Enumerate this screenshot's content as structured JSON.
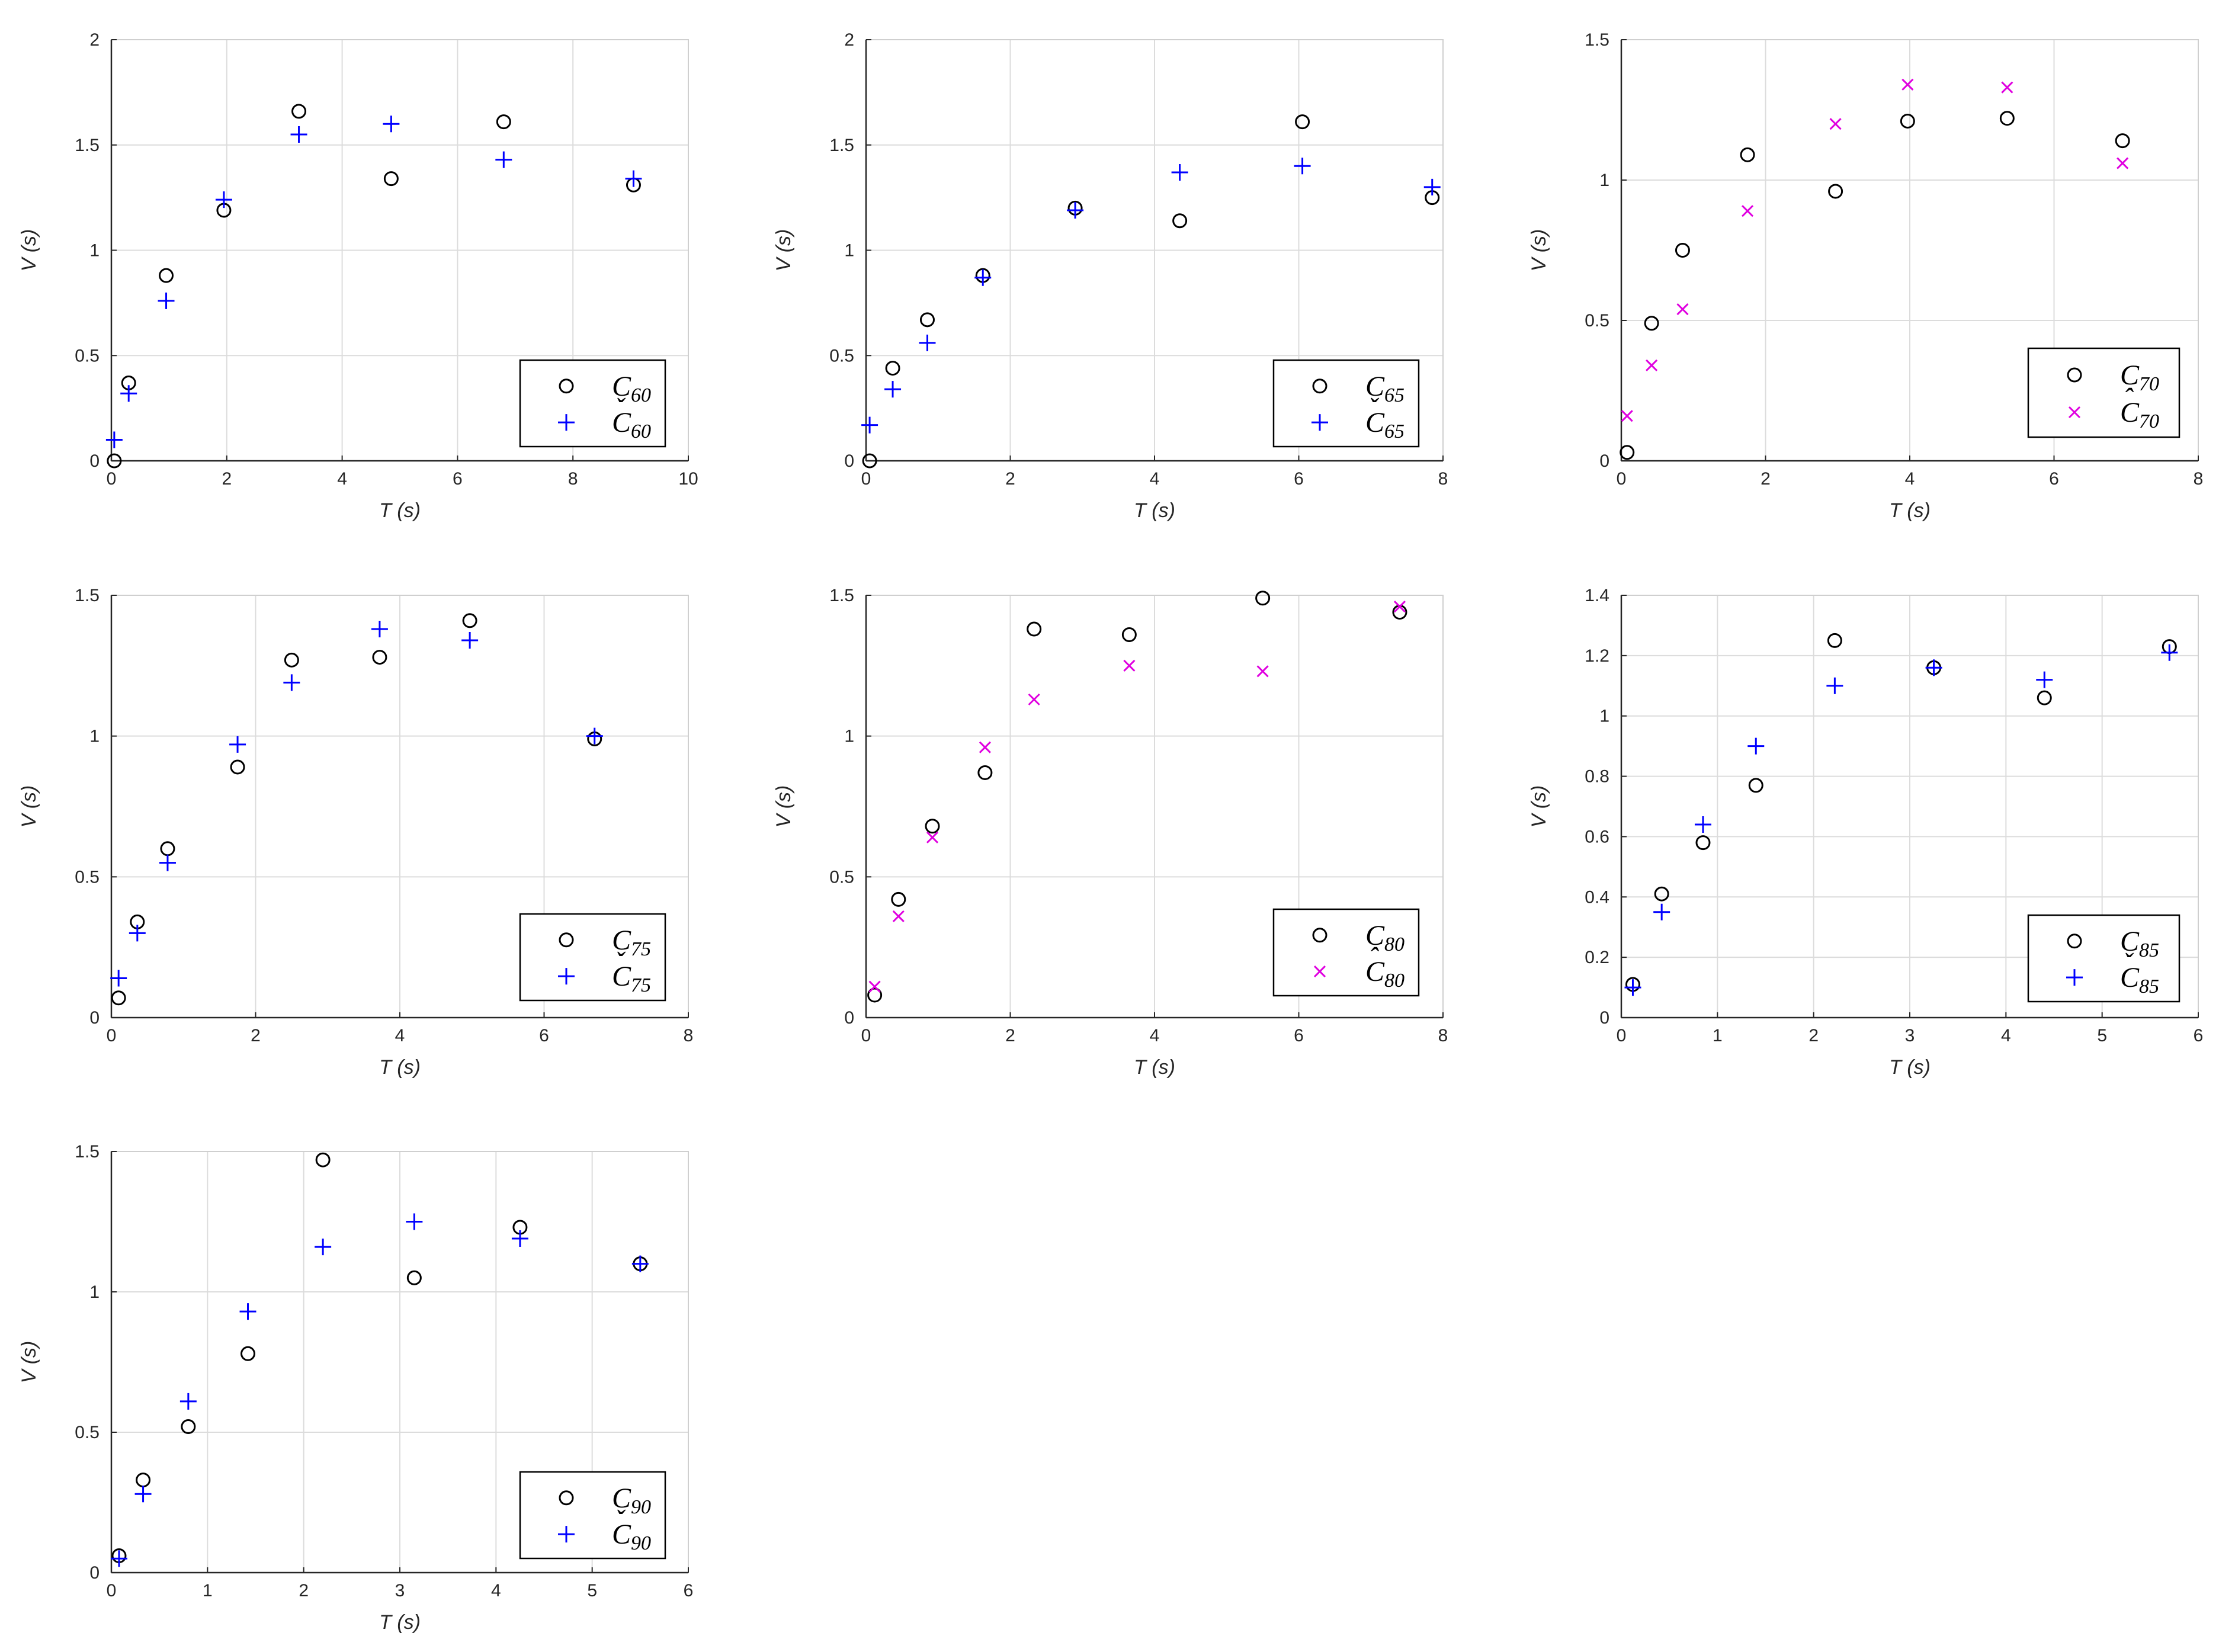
{
  "colors": {
    "circle": "#000000",
    "blue_plus": "#0000ff",
    "magenta_x": "#e000e0",
    "grid": "#dcdcdc",
    "axis": "#262626"
  },
  "chart_data": [
    {
      "type": "scatter",
      "xlabel": "T (s)",
      "ylabel": "V (s)",
      "xlim": [
        0,
        10
      ],
      "ylim": [
        0,
        2
      ],
      "xticks": [
        "0",
        "2",
        "4",
        "6",
        "8",
        "10"
      ],
      "yticks": [
        "0",
        "0.5",
        "1",
        "1.5",
        "2"
      ],
      "grid": true,
      "legend_position": "bottom-right",
      "series": [
        {
          "name": "C",
          "sub": "60",
          "accent": "",
          "marker": "circle",
          "color": "#000000",
          "points": [
            [
              0.05,
              0
            ],
            [
              0.3,
              0.37
            ],
            [
              0.95,
              0.88
            ],
            [
              1.95,
              1.19
            ],
            [
              3.25,
              1.66
            ],
            [
              4.85,
              1.34
            ],
            [
              6.8,
              1.61
            ],
            [
              9.05,
              1.31
            ]
          ]
        },
        {
          "name": "C",
          "sub": "60",
          "accent": "ˇ",
          "marker": "plus",
          "color": "#0000ff",
          "points": [
            [
              0.05,
              0.1
            ],
            [
              0.3,
              0.32
            ],
            [
              0.95,
              0.76
            ],
            [
              1.95,
              1.24
            ],
            [
              3.25,
              1.55
            ],
            [
              4.85,
              1.6
            ],
            [
              6.8,
              1.43
            ],
            [
              9.05,
              1.34
            ]
          ]
        }
      ]
    },
    {
      "type": "scatter",
      "xlabel": "T (s)",
      "ylabel": "V (s)",
      "xlim": [
        0,
        8
      ],
      "ylim": [
        0,
        2
      ],
      "xticks": [
        "0",
        "2",
        "4",
        "6",
        "8"
      ],
      "yticks": [
        "0",
        "0.5",
        "1",
        "1.5",
        "2"
      ],
      "grid": true,
      "legend_position": "bottom-right",
      "series": [
        {
          "name": "C",
          "sub": "65",
          "accent": "",
          "marker": "circle",
          "color": "#000000",
          "points": [
            [
              0.05,
              0
            ],
            [
              0.37,
              0.44
            ],
            [
              0.85,
              0.67
            ],
            [
              1.62,
              0.88
            ],
            [
              2.9,
              1.2
            ],
            [
              4.35,
              1.14
            ],
            [
              6.05,
              1.61
            ],
            [
              7.85,
              1.25
            ]
          ]
        },
        {
          "name": "C",
          "sub": "65",
          "accent": "ˇ",
          "marker": "plus",
          "color": "#0000ff",
          "points": [
            [
              0.05,
              0.17
            ],
            [
              0.37,
              0.34
            ],
            [
              0.85,
              0.56
            ],
            [
              1.62,
              0.87
            ],
            [
              2.9,
              1.19
            ],
            [
              4.35,
              1.37
            ],
            [
              6.05,
              1.4
            ],
            [
              7.85,
              1.3
            ]
          ]
        }
      ]
    },
    {
      "type": "scatter",
      "xlabel": "T (s)",
      "ylabel": "V (s)",
      "xlim": [
        0,
        8
      ],
      "ylim": [
        0,
        1.5
      ],
      "xticks": [
        "0",
        "2",
        "4",
        "6",
        "8"
      ],
      "yticks": [
        "0",
        "0.5",
        "1",
        "1.5"
      ],
      "grid": true,
      "legend_position": "top-right",
      "series": [
        {
          "name": "C",
          "sub": "70",
          "accent": "",
          "marker": "circle",
          "color": "#000000",
          "points": [
            [
              0.08,
              0.03
            ],
            [
              0.42,
              0.49
            ],
            [
              0.85,
              0.75
            ],
            [
              1.75,
              1.09
            ],
            [
              2.97,
              0.96
            ],
            [
              3.97,
              1.21
            ],
            [
              5.35,
              1.22
            ],
            [
              6.95,
              1.14
            ]
          ]
        },
        {
          "name": "C",
          "sub": "70",
          "accent": "ˆ",
          "marker": "x",
          "color": "#e000e0",
          "points": [
            [
              0.08,
              0.16
            ],
            [
              0.42,
              0.34
            ],
            [
              0.85,
              0.54
            ],
            [
              1.75,
              0.89
            ],
            [
              2.97,
              1.2
            ],
            [
              3.97,
              1.34
            ],
            [
              5.35,
              1.33
            ],
            [
              6.95,
              1.06
            ]
          ]
        }
      ]
    },
    {
      "type": "scatter",
      "xlabel": "T (s)",
      "ylabel": "V (s)",
      "xlim": [
        0,
        8
      ],
      "ylim": [
        0,
        1.5
      ],
      "xticks": [
        "0",
        "2",
        "4",
        "6",
        "8"
      ],
      "yticks": [
        "0",
        "0.5",
        "1",
        "1.5"
      ],
      "grid": true,
      "legend_position": "bottom-right",
      "series": [
        {
          "name": "C",
          "sub": "75",
          "accent": "",
          "marker": "circle",
          "color": "#000000",
          "points": [
            [
              0.1,
              0.07
            ],
            [
              0.36,
              0.34
            ],
            [
              0.78,
              0.6
            ],
            [
              1.75,
              0.89
            ],
            [
              2.5,
              1.27
            ],
            [
              3.72,
              1.28
            ],
            [
              4.97,
              1.41
            ],
            [
              6.7,
              0.99
            ]
          ]
        },
        {
          "name": "C",
          "sub": "75",
          "accent": "ˇ",
          "marker": "plus",
          "color": "#0000ff",
          "points": [
            [
              0.1,
              0.14
            ],
            [
              0.36,
              0.3
            ],
            [
              0.78,
              0.55
            ],
            [
              1.75,
              0.97
            ],
            [
              2.5,
              1.19
            ],
            [
              3.72,
              1.38
            ],
            [
              4.97,
              1.34
            ],
            [
              6.7,
              1.0
            ]
          ]
        }
      ]
    },
    {
      "type": "scatter",
      "xlabel": "T (s)",
      "ylabel": "V (s)",
      "xlim": [
        0,
        8
      ],
      "ylim": [
        0,
        1.5
      ],
      "xticks": [
        "0",
        "2",
        "4",
        "6",
        "8"
      ],
      "yticks": [
        "0",
        "0.5",
        "1",
        "1.5"
      ],
      "grid": true,
      "legend_position": "bottom-right",
      "series": [
        {
          "name": "C",
          "sub": "80",
          "accent": "",
          "marker": "circle",
          "color": "#000000",
          "points": [
            [
              0.12,
              0.08
            ],
            [
              0.45,
              0.42
            ],
            [
              0.92,
              0.68
            ],
            [
              1.65,
              0.87
            ],
            [
              2.33,
              1.38
            ],
            [
              3.65,
              1.36
            ],
            [
              5.5,
              1.49
            ],
            [
              7.4,
              1.44
            ]
          ]
        },
        {
          "name": "C",
          "sub": "80",
          "accent": "ˆ",
          "marker": "x",
          "color": "#e000e0",
          "points": [
            [
              0.12,
              0.11
            ],
            [
              0.45,
              0.36
            ],
            [
              0.92,
              0.64
            ],
            [
              1.65,
              0.96
            ],
            [
              2.33,
              1.13
            ],
            [
              3.65,
              1.25
            ],
            [
              5.5,
              1.23
            ],
            [
              7.4,
              1.46
            ]
          ]
        }
      ]
    },
    {
      "type": "scatter",
      "xlabel": "T (s)",
      "ylabel": "V (s)",
      "xlim": [
        0,
        6
      ],
      "ylim": [
        0,
        1.4
      ],
      "xticks": [
        "0",
        "1",
        "2",
        "3",
        "4",
        "5",
        "6"
      ],
      "yticks": [
        "0",
        "0.2",
        "0.4",
        "0.6",
        "0.8",
        "1",
        "1.2",
        "1.4"
      ],
      "grid": true,
      "legend_position": "bottom-right",
      "series": [
        {
          "name": "C",
          "sub": "85",
          "accent": "",
          "marker": "circle",
          "color": "#000000",
          "points": [
            [
              0.12,
              0.11
            ],
            [
              0.42,
              0.41
            ],
            [
              0.85,
              0.58
            ],
            [
              1.4,
              0.77
            ],
            [
              2.22,
              1.25
            ],
            [
              3.25,
              1.16
            ],
            [
              4.4,
              1.06
            ],
            [
              5.7,
              1.23
            ]
          ]
        },
        {
          "name": "C",
          "sub": "85",
          "accent": "ˇ",
          "marker": "plus",
          "color": "#0000ff",
          "points": [
            [
              0.12,
              0.1
            ],
            [
              0.42,
              0.35
            ],
            [
              0.85,
              0.64
            ],
            [
              1.4,
              0.9
            ],
            [
              2.22,
              1.1
            ],
            [
              3.25,
              1.16
            ],
            [
              4.4,
              1.12
            ],
            [
              5.7,
              1.21
            ]
          ]
        }
      ]
    },
    {
      "type": "scatter",
      "xlabel": "T (s)",
      "ylabel": "V (s)",
      "xlim": [
        0,
        6
      ],
      "ylim": [
        0,
        1.5
      ],
      "xticks": [
        "0",
        "1",
        "2",
        "3",
        "4",
        "5",
        "6"
      ],
      "yticks": [
        "0",
        "0.5",
        "1",
        "1.5"
      ],
      "grid": true,
      "legend_position": "bottom-right",
      "series": [
        {
          "name": "C",
          "sub": "90",
          "accent": "",
          "marker": "circle",
          "color": "#000000",
          "points": [
            [
              0.08,
              0.06
            ],
            [
              0.33,
              0.33
            ],
            [
              0.8,
              0.52
            ],
            [
              1.42,
              0.78
            ],
            [
              2.2,
              1.47
            ],
            [
              3.15,
              1.05
            ],
            [
              4.25,
              1.23
            ],
            [
              5.5,
              1.1
            ]
          ]
        },
        {
          "name": "C",
          "sub": "90",
          "accent": "ˇ",
          "marker": "plus",
          "color": "#0000ff",
          "points": [
            [
              0.08,
              0.05
            ],
            [
              0.33,
              0.28
            ],
            [
              0.8,
              0.61
            ],
            [
              1.42,
              0.93
            ],
            [
              2.2,
              1.16
            ],
            [
              3.15,
              1.25
            ],
            [
              4.25,
              1.19
            ],
            [
              5.5,
              1.1
            ]
          ]
        }
      ]
    }
  ]
}
